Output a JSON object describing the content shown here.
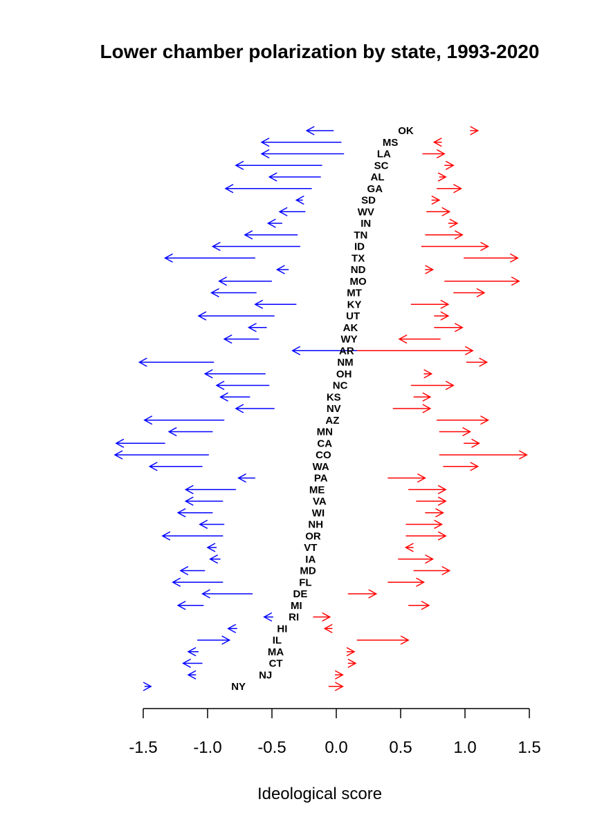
{
  "chart_data": {
    "type": "arrow",
    "title": "Lower chamber polarization by state, 1993-2020",
    "xlabel": "Ideological score",
    "xlim": [
      -1.5,
      1.5
    ],
    "xticks": [
      -1.5,
      {
        "value": -1,
        "label": "-1.0"
      },
      -0.5,
      {
        "value": 0,
        "label": "0.0"
      },
      0.5,
      {
        "value": 1,
        "label": "1.0"
      },
      1.5
    ],
    "categories": [
      "OK",
      "MS",
      "LA",
      "SC",
      "AL",
      "GA",
      "SD",
      "WV",
      "IN",
      "TN",
      "ID",
      "TX",
      "ND",
      "MO",
      "MT",
      "KY",
      "UT",
      "AK",
      "WY",
      "AR",
      "NM",
      "OH",
      "NC",
      "KS",
      "NV",
      "AZ",
      "MN",
      "CA",
      "CO",
      "WA",
      "PA",
      "ME",
      "VA",
      "WI",
      "NH",
      "OR",
      "VT",
      "IA",
      "MD",
      "FL",
      "DE",
      "MI",
      "RI",
      "HI",
      "IL",
      "MA",
      "CT",
      "NJ",
      "NY"
    ],
    "label_x": [
      0.54,
      0.42,
      0.37,
      0.35,
      0.32,
      0.3,
      0.25,
      0.23,
      0.23,
      0.19,
      0.18,
      0.17,
      0.17,
      0.17,
      0.14,
      0.14,
      0.13,
      0.11,
      0.1,
      0.08,
      0.07,
      0.06,
      0.03,
      -0.02,
      -0.02,
      -0.03,
      -0.09,
      -0.09,
      -0.1,
      -0.12,
      -0.12,
      -0.15,
      -0.13,
      -0.14,
      -0.16,
      -0.18,
      -0.2,
      -0.2,
      -0.22,
      -0.24,
      -0.28,
      -0.31,
      -0.33,
      -0.42,
      -0.46,
      -0.47,
      -0.47,
      -0.55,
      -0.76
    ],
    "series": [
      {
        "color": "#0000ff",
        "start": [
          -0.02,
          0.04,
          0.06,
          -0.11,
          -0.12,
          -0.19,
          -0.26,
          -0.24,
          -0.42,
          -0.3,
          -0.28,
          -0.63,
          -0.37,
          -0.5,
          -0.62,
          -0.31,
          -0.48,
          -0.54,
          -0.6,
          0.17,
          -0.95,
          -0.55,
          -0.52,
          -0.67,
          -0.48,
          -0.87,
          -0.96,
          -1.33,
          -0.99,
          -1.04,
          -0.63,
          -0.78,
          -0.88,
          -0.96,
          -0.87,
          -0.88,
          -0.93,
          -0.9,
          -1.02,
          -0.88,
          -0.65,
          -1.03,
          -0.49,
          -0.77,
          -1.08,
          -1.07,
          -1.04,
          -1.09,
          -1.49
        ],
        "end": [
          -0.23,
          -0.58,
          -0.58,
          -0.78,
          -0.52,
          -0.86,
          -0.31,
          -0.44,
          -0.53,
          -0.71,
          -0.96,
          -1.33,
          -0.46,
          -0.91,
          -0.97,
          -0.63,
          -1.07,
          -0.68,
          -0.87,
          -0.34,
          -1.53,
          -1.02,
          -0.93,
          -0.9,
          -0.78,
          -1.49,
          -1.3,
          -1.71,
          -1.72,
          -1.45,
          -0.76,
          -1.17,
          -1.17,
          -1.23,
          -1.06,
          -1.35,
          -1.0,
          -0.98,
          -1.21,
          -1.27,
          -1.04,
          -1.23,
          -0.56,
          -0.84,
          -0.83,
          -1.15,
          -1.19,
          -1.15,
          -1.44
        ]
      },
      {
        "color": "#ff0000",
        "start": [
          1.04,
          0.82,
          0.67,
          0.84,
          0.8,
          0.78,
          0.74,
          0.7,
          0.87,
          0.69,
          0.66,
          0.99,
          0.69,
          0.84,
          0.91,
          0.58,
          0.76,
          0.76,
          0.81,
          0.16,
          1.01,
          0.68,
          0.58,
          0.6,
          0.44,
          0.78,
          0.8,
          0.99,
          0.8,
          0.83,
          0.4,
          0.56,
          0.62,
          0.69,
          0.54,
          0.54,
          0.6,
          0.48,
          0.6,
          0.4,
          0.09,
          0.56,
          -0.18,
          -0.03,
          0.16,
          0.08,
          0.09,
          -0.01,
          -0.06
        ],
        "end": [
          1.1,
          0.76,
          0.84,
          0.91,
          0.85,
          0.97,
          0.8,
          0.88,
          0.94,
          0.98,
          1.18,
          1.41,
          0.75,
          1.42,
          1.15,
          0.87,
          0.87,
          0.98,
          0.49,
          1.06,
          1.17,
          0.74,
          0.91,
          0.73,
          0.73,
          1.18,
          1.04,
          1.11,
          1.48,
          1.1,
          0.69,
          0.85,
          0.85,
          0.83,
          0.82,
          0.85,
          0.54,
          0.75,
          0.88,
          0.68,
          0.31,
          0.72,
          -0.05,
          -0.09,
          0.56,
          0.14,
          0.15,
          0.05,
          0.05
        ]
      }
    ]
  }
}
